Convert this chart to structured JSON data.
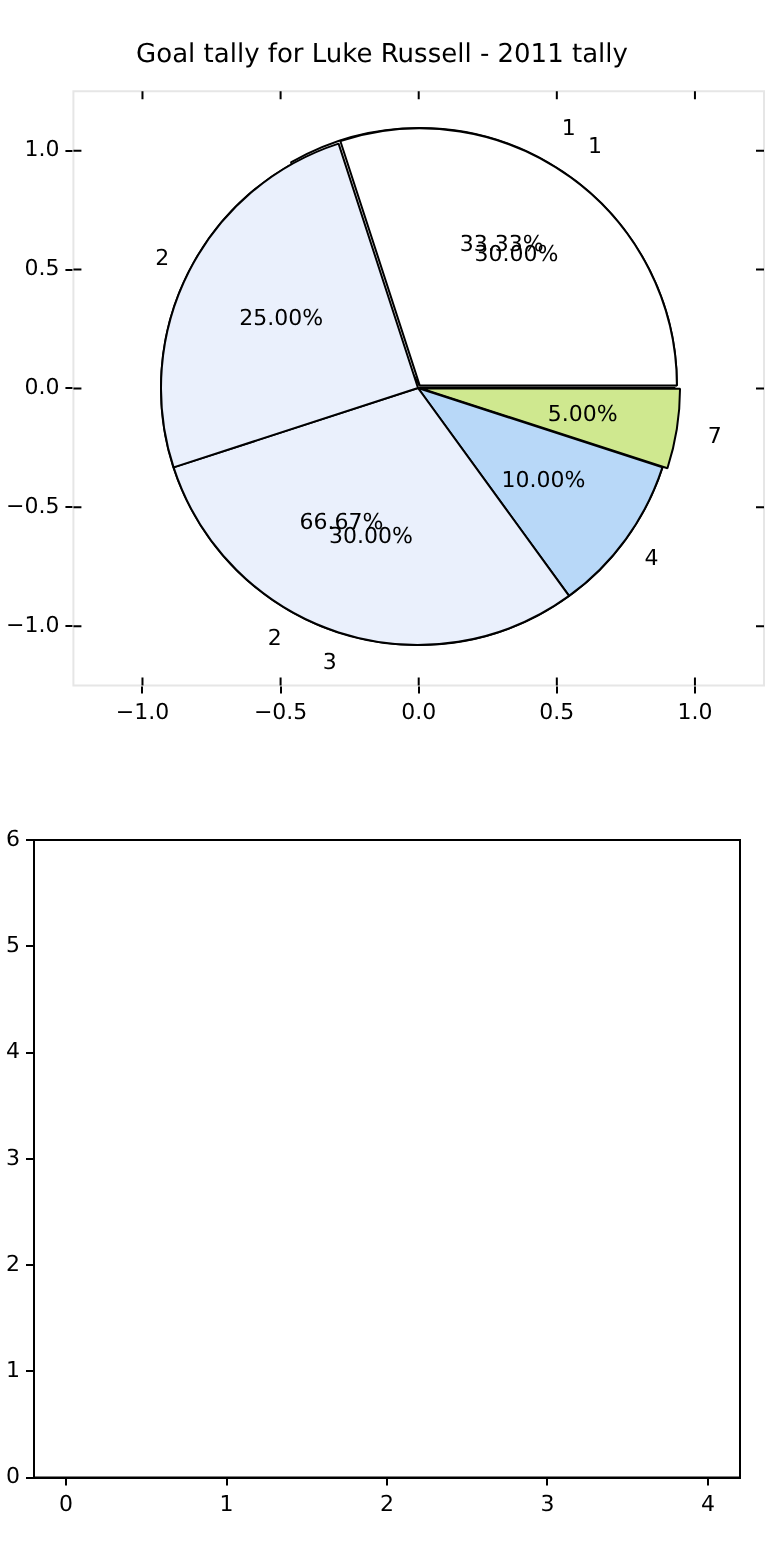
{
  "chart_data": [
    {
      "type": "scatter",
      "title": "Goal tally for Luke Russell - 2011 tally",
      "xlim": [
        -1.25,
        1.25
      ],
      "ylim": [
        -1.25,
        1.25
      ],
      "xticks": [
        {
          "value": -1,
          "label": "−1.0"
        },
        {
          "value": -0.5,
          "label": "−0.5"
        },
        {
          "value": 0,
          "label": "0.0"
        },
        {
          "value": 0.5,
          "label": "0.5"
        },
        {
          "value": 1,
          "label": "1.0"
        }
      ],
      "yticks": [
        {
          "value": -1,
          "label": "−1.0"
        },
        {
          "value": -0.5,
          "label": "−0.5"
        },
        {
          "value": 0,
          "label": "0.0"
        },
        {
          "value": 0.5,
          "label": "0.5"
        },
        {
          "value": 1,
          "label": "1.0"
        }
      ]
    },
    {
      "type": "pie",
      "categories": [
        "1",
        "2"
      ],
      "values": [
        33.33,
        66.67
      ],
      "colors": [
        "#ffffff",
        "#eaf0fc"
      ],
      "value_labels": [
        "33.33%",
        "66.67%"
      ]
    },
    {
      "type": "pie",
      "categories": [
        "1",
        "2",
        "3",
        "4",
        "7"
      ],
      "values": [
        30,
        25,
        30,
        10,
        5
      ],
      "colors": [
        "#ffffff",
        "#eaf0fc",
        "#eaf0fc",
        "#b8d8f8",
        "#cfe88f"
      ],
      "value_labels": [
        "30.00%",
        "25.00%",
        "30.00%",
        "10.00%",
        "5.00%"
      ]
    },
    {
      "type": "scatter",
      "xlim": [
        -0.2,
        4.2
      ],
      "ylim": [
        0,
        6
      ],
      "xticks": [
        0,
        1,
        2,
        3,
        4
      ],
      "yticks": [
        0,
        1,
        2,
        3,
        4,
        5,
        6
      ]
    }
  ]
}
